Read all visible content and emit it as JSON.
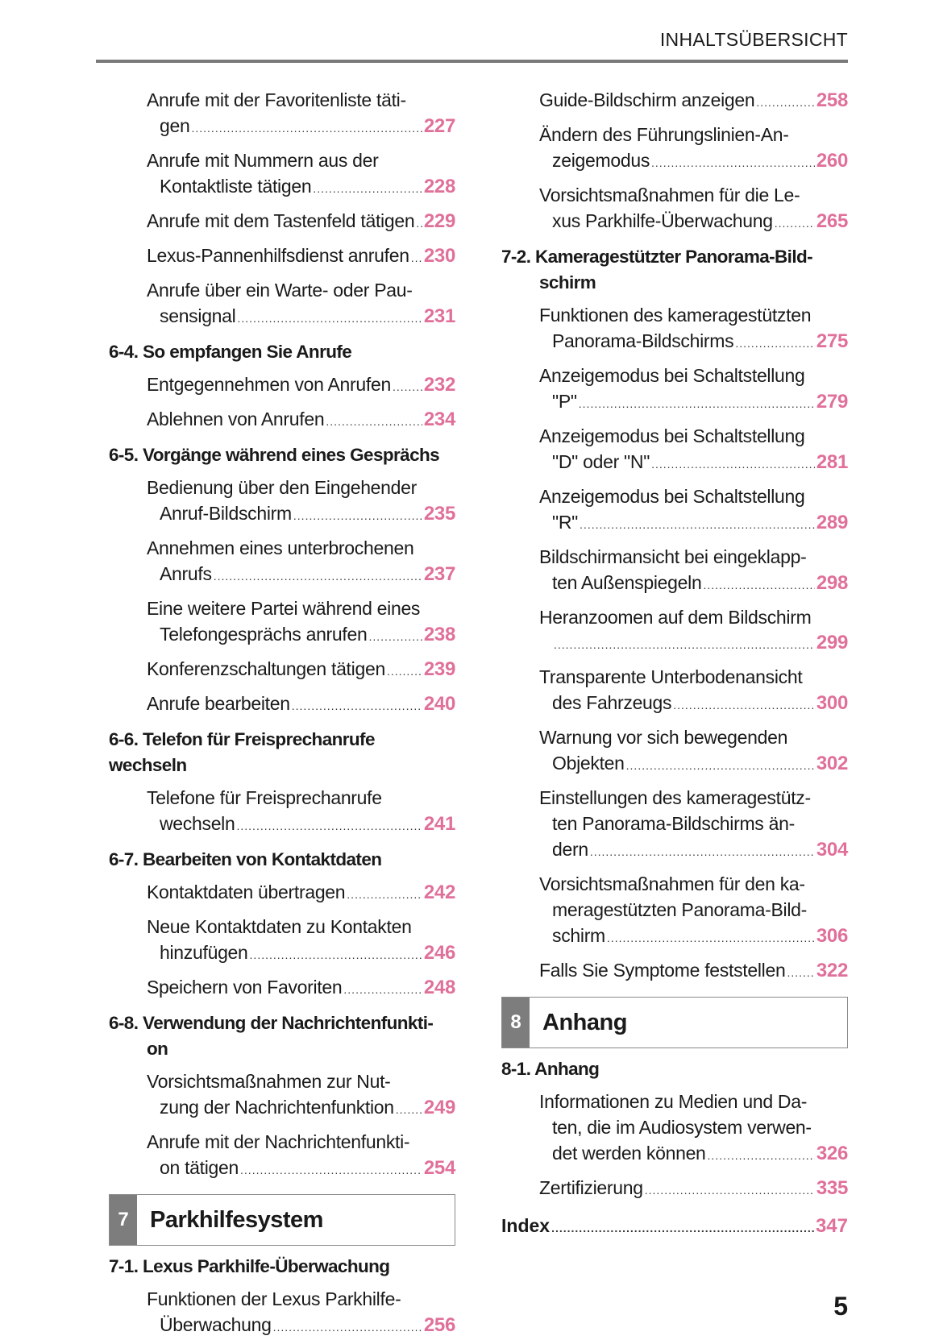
{
  "header": {
    "title": "INHALTSÜBERSICHT"
  },
  "page_number": "5",
  "colors": {
    "page_ref": "#e0709a",
    "chapter_tab": "#7d7d7d"
  },
  "left": [
    {
      "type": "entry",
      "lines": [
        "Anrufe mit der Favoritenliste täti-",
        "gen"
      ],
      "page": "227"
    },
    {
      "type": "entry",
      "lines": [
        "Anrufe mit Nummern aus der",
        "Kontaktliste tätigen"
      ],
      "page": "228"
    },
    {
      "type": "entry",
      "lines": [
        "Anrufe mit dem Tastenfeld tätigen"
      ],
      "page": "229"
    },
    {
      "type": "entry",
      "lines": [
        "Lexus-Pannenhilfsdienst anrufen"
      ],
      "page": "230"
    },
    {
      "type": "entry",
      "lines": [
        "Anrufe über ein Warte- oder Pau-",
        "sensignal"
      ],
      "page": "231"
    },
    {
      "type": "section",
      "lines": [
        "6-4. So empfangen Sie Anrufe"
      ]
    },
    {
      "type": "entry",
      "lines": [
        "Entgegennehmen von Anrufen"
      ],
      "page": "232"
    },
    {
      "type": "entry",
      "lines": [
        "Ablehnen von Anrufen"
      ],
      "page": "234"
    },
    {
      "type": "section",
      "lines": [
        "6-5. Vorgänge während eines Gesprächs"
      ]
    },
    {
      "type": "entry",
      "lines": [
        "Bedienung über den Eingehender",
        "Anruf-Bildschirm"
      ],
      "page": "235"
    },
    {
      "type": "entry",
      "lines": [
        "Annehmen eines unterbrochenen",
        "Anrufs"
      ],
      "page": "237"
    },
    {
      "type": "entry",
      "lines": [
        "Eine weitere Partei während eines",
        "Telefongesprächs anrufen"
      ],
      "page": "238"
    },
    {
      "type": "entry",
      "lines": [
        "Konferenzschaltungen tätigen"
      ],
      "page": "239"
    },
    {
      "type": "entry",
      "lines": [
        "Anrufe bearbeiten"
      ],
      "page": "240"
    },
    {
      "type": "section",
      "lines": [
        "6-6. Telefon für Freisprechanrufe wechseln"
      ]
    },
    {
      "type": "entry",
      "lines": [
        "Telefone für Freisprechanrufe",
        "wechseln"
      ],
      "page": "241"
    },
    {
      "type": "section",
      "lines": [
        "6-7. Bearbeiten von Kontaktdaten"
      ]
    },
    {
      "type": "entry",
      "lines": [
        "Kontaktdaten übertragen"
      ],
      "page": "242"
    },
    {
      "type": "entry",
      "lines": [
        "Neue Kontaktdaten zu Kontakten",
        "hinzufügen"
      ],
      "page": "246"
    },
    {
      "type": "entry",
      "lines": [
        "Speichern von Favoriten"
      ],
      "page": "248"
    },
    {
      "type": "section",
      "lines": [
        "6-8. Verwendung der Nachrichtenfunkti-",
        "on"
      ]
    },
    {
      "type": "entry",
      "lines": [
        "Vorsichtsmaßnahmen zur Nut-",
        "zung der Nachrichtenfunktion"
      ],
      "page": "249"
    },
    {
      "type": "entry",
      "lines": [
        "Anrufe mit der Nachrichtenfunkti-",
        "on tätigen"
      ],
      "page": "254"
    },
    {
      "type": "chapter",
      "number": "7",
      "title": "Parkhilfesystem"
    },
    {
      "type": "section",
      "lines": [
        "7-1. Lexus Parkhilfe-Überwachung"
      ]
    },
    {
      "type": "entry",
      "lines": [
        "Funktionen der Lexus Parkhilfe-",
        "Überwachung"
      ],
      "page": "256"
    }
  ],
  "right": [
    {
      "type": "entry",
      "lines": [
        "Guide-Bildschirm anzeigen"
      ],
      "page": "258"
    },
    {
      "type": "entry",
      "lines": [
        "Ändern des Führungslinien-An-",
        "zeigemodus"
      ],
      "page": "260"
    },
    {
      "type": "entry",
      "lines": [
        "Vorsichtsmaßnahmen für die Le-",
        "xus Parkhilfe-Überwachung"
      ],
      "page": "265"
    },
    {
      "type": "section",
      "lines": [
        "7-2. Kameragestützter Panorama-Bild-",
        "schirm"
      ]
    },
    {
      "type": "entry",
      "lines": [
        "Funktionen des kameragestützten",
        "Panorama-Bildschirms"
      ],
      "page": "275"
    },
    {
      "type": "entry",
      "lines": [
        "Anzeigemodus bei Schaltstellung",
        "\"P\""
      ],
      "page": "279"
    },
    {
      "type": "entry",
      "lines": [
        "Anzeigemodus bei Schaltstellung",
        "\"D\" oder \"N\""
      ],
      "page": "281"
    },
    {
      "type": "entry",
      "lines": [
        "Anzeigemodus bei Schaltstellung",
        "\"R\""
      ],
      "page": "289"
    },
    {
      "type": "entry",
      "lines": [
        "Bildschirmansicht bei eingeklapp-",
        "ten Außenspiegeln"
      ],
      "page": "298"
    },
    {
      "type": "entry",
      "lines": [
        "Heranzoomen auf dem Bildschirm",
        ""
      ],
      "page": "299"
    },
    {
      "type": "entry",
      "lines": [
        "Transparente Unterbodenansicht",
        "des Fahrzeugs"
      ],
      "page": "300"
    },
    {
      "type": "entry",
      "lines": [
        "Warnung vor sich bewegenden",
        "Objekten"
      ],
      "page": "302"
    },
    {
      "type": "entry",
      "lines": [
        "Einstellungen des kameragestütz-",
        "ten Panorama-Bildschirms än-",
        "dern"
      ],
      "page": "304"
    },
    {
      "type": "entry",
      "lines": [
        "Vorsichtsmaßnahmen für den ka-",
        "meragestützten Panorama-Bild-",
        "schirm"
      ],
      "page": "306"
    },
    {
      "type": "entry",
      "lines": [
        "Falls Sie Symptome feststellen"
      ],
      "page": "322"
    },
    {
      "type": "chapter",
      "number": "8",
      "title": "Anhang"
    },
    {
      "type": "section",
      "lines": [
        "8-1. Anhang"
      ]
    },
    {
      "type": "entry",
      "lines": [
        "Informationen zu Medien und Da-",
        "ten, die im Audiosystem verwen-",
        "det werden können"
      ],
      "page": "326"
    },
    {
      "type": "entry",
      "lines": [
        "Zertifizierung"
      ],
      "page": "335"
    },
    {
      "type": "index",
      "lines": [
        "Index"
      ],
      "page": "347"
    }
  ]
}
